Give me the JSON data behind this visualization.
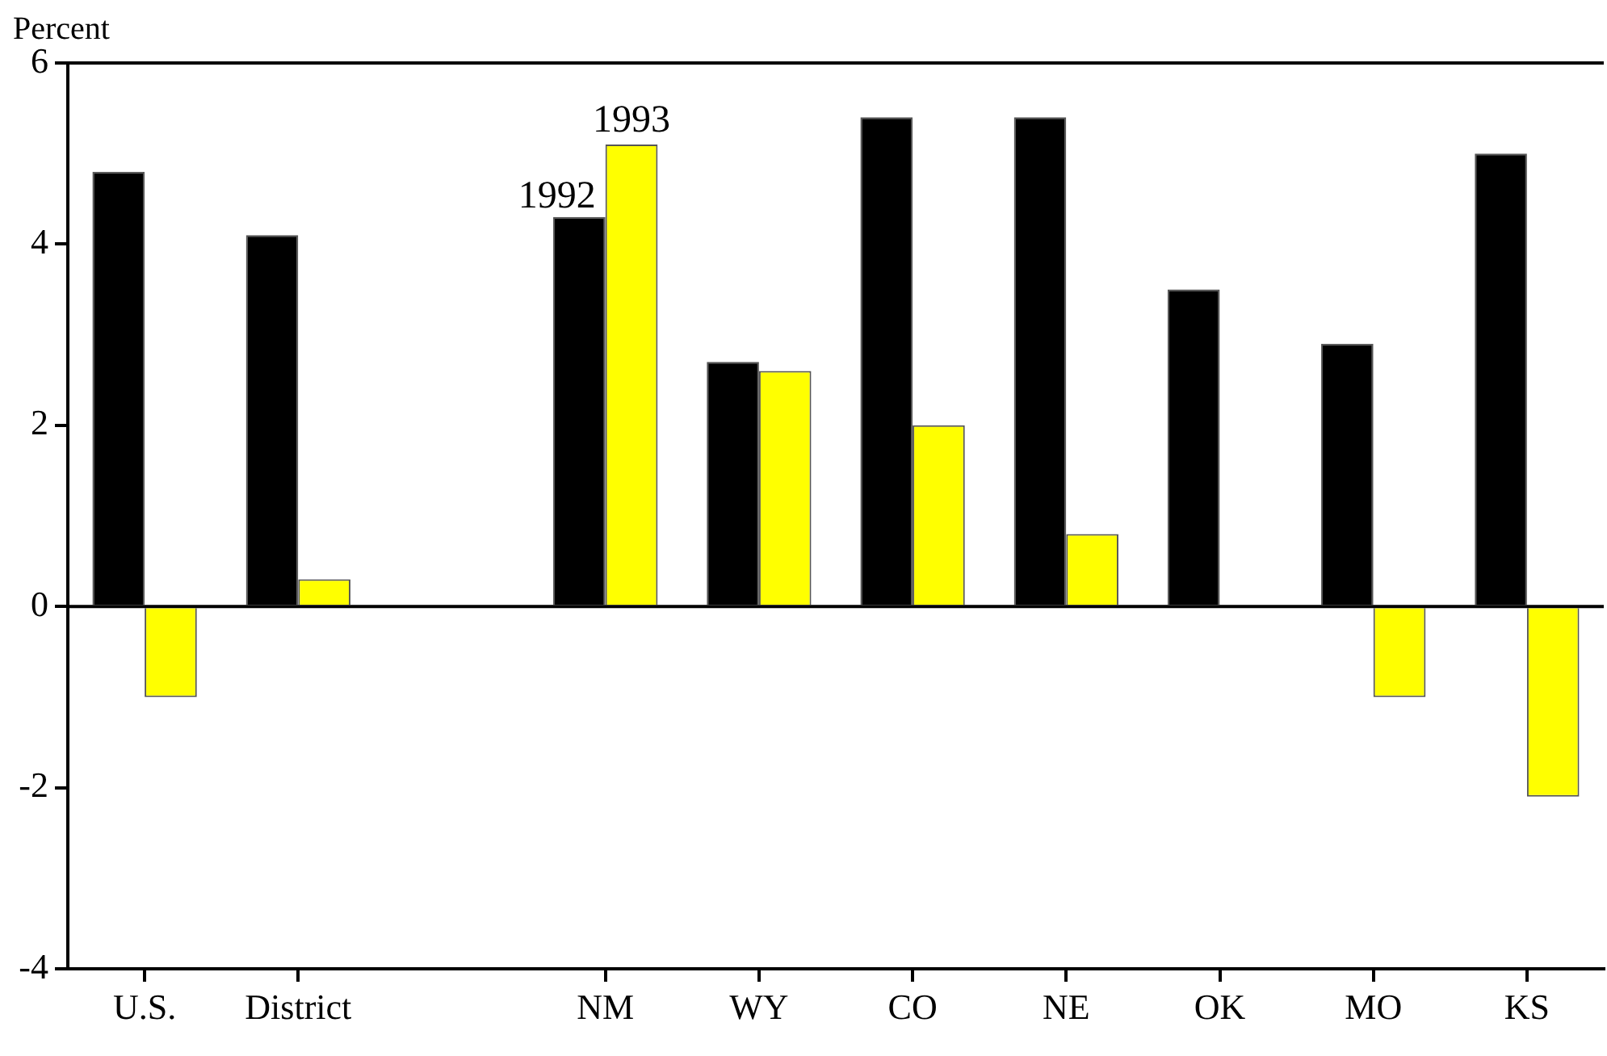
{
  "chart_data": {
    "type": "bar",
    "ylabel": "Percent",
    "categories": [
      "U.S.",
      "District",
      null,
      "NM",
      "WY",
      "CO",
      "NE",
      "OK",
      "MO",
      "KS"
    ],
    "series": [
      {
        "name": "1992",
        "color": "#000000",
        "values": [
          4.8,
          4.1,
          null,
          4.3,
          2.7,
          5.4,
          5.4,
          3.5,
          2.9,
          5.0
        ]
      },
      {
        "name": "1993",
        "color": "#ffff00",
        "values": [
          -1.0,
          0.3,
          null,
          5.1,
          2.6,
          2.0,
          0.8,
          null,
          -1.0,
          -2.1
        ]
      }
    ],
    "ylim": [
      -4,
      6
    ],
    "yticks": [
      -4,
      -2,
      0,
      2,
      4,
      6
    ],
    "ref_lines": [
      {
        "axis": "y",
        "value": 0
      }
    ],
    "grid": false,
    "legend": false
  }
}
